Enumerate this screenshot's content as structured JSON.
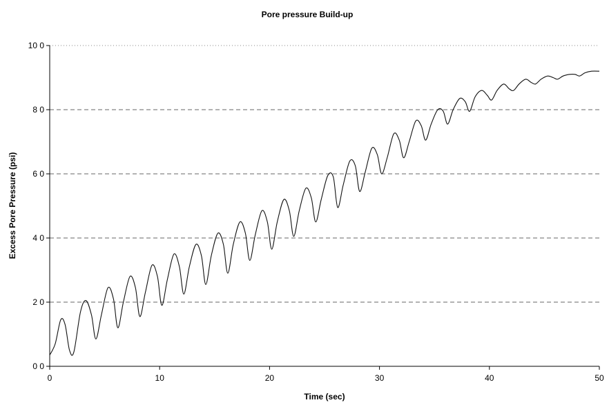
{
  "chart_data": {
    "type": "line",
    "title": "Pore pressure Build-up",
    "xlabel": "Time (sec)",
    "ylabel": "Excess Pore Pressure (psi)",
    "xlim": [
      0,
      50
    ],
    "ylim": [
      0,
      10
    ],
    "x_ticks": [
      0,
      10,
      20,
      30,
      40,
      50
    ],
    "x_tick_labels": [
      "0",
      "10",
      "20",
      "30",
      "40",
      "50"
    ],
    "y_ticks": [
      0,
      2,
      4,
      6,
      8,
      10
    ],
    "y_tick_labels": [
      "0 0",
      "2 0",
      "4 0",
      "6 0",
      "8 0",
      "10 0"
    ],
    "grid": "horizontal dashed",
    "legend": "none",
    "series": [
      {
        "color": "#111111",
        "x": [
          0,
          0.5,
          1.0,
          1.4,
          1.8,
          2.2,
          2.8,
          3.3,
          3.8,
          4.2,
          4.7,
          5.3,
          5.8,
          6.2,
          6.7,
          7.3,
          7.8,
          8.2,
          8.7,
          9.3,
          9.8,
          10.2,
          10.7,
          11.3,
          11.8,
          12.2,
          12.7,
          13.3,
          13.8,
          14.2,
          14.7,
          15.3,
          15.8,
          16.2,
          16.7,
          17.3,
          17.8,
          18.2,
          18.7,
          19.3,
          19.8,
          20.2,
          20.7,
          21.3,
          21.8,
          22.2,
          22.7,
          23.3,
          23.8,
          24.2,
          24.7,
          25.3,
          25.8,
          26.2,
          26.7,
          27.3,
          27.8,
          28.2,
          28.7,
          29.3,
          29.8,
          30.2,
          30.7,
          31.3,
          31.8,
          32.2,
          32.7,
          33.3,
          33.8,
          34.2,
          34.7,
          35.3,
          35.8,
          36.2,
          36.7,
          37.3,
          37.8,
          38.2,
          38.7,
          39.3,
          39.8,
          40.2,
          40.7,
          41.3,
          41.8,
          42.2,
          42.7,
          43.3,
          43.8,
          44.2,
          44.7,
          45.3,
          45.8,
          46.2,
          46.7,
          47.3,
          47.8,
          48.2,
          48.7,
          49.3,
          50.0
        ],
        "y": [
          0.35,
          0.7,
          1.45,
          1.3,
          0.5,
          0.45,
          1.7,
          2.05,
          1.6,
          0.85,
          1.6,
          2.45,
          2.1,
          1.2,
          2.0,
          2.8,
          2.45,
          1.55,
          2.3,
          3.15,
          2.8,
          1.9,
          2.7,
          3.5,
          3.1,
          2.25,
          3.1,
          3.8,
          3.45,
          2.55,
          3.45,
          4.15,
          3.8,
          2.9,
          3.8,
          4.5,
          4.15,
          3.3,
          4.1,
          4.85,
          4.5,
          3.65,
          4.5,
          5.2,
          4.85,
          4.05,
          4.85,
          5.55,
          5.25,
          4.5,
          5.2,
          5.95,
          5.9,
          4.95,
          5.65,
          6.4,
          6.25,
          5.45,
          6.05,
          6.8,
          6.6,
          6.0,
          6.5,
          7.25,
          7.05,
          6.5,
          7.0,
          7.65,
          7.5,
          7.05,
          7.55,
          8.0,
          7.95,
          7.55,
          8.0,
          8.35,
          8.25,
          7.95,
          8.4,
          8.6,
          8.45,
          8.3,
          8.6,
          8.8,
          8.65,
          8.6,
          8.8,
          8.95,
          8.85,
          8.8,
          8.95,
          9.05,
          9.0,
          8.95,
          9.05,
          9.1,
          9.1,
          9.05,
          9.15,
          9.2,
          9.2
        ]
      }
    ]
  }
}
